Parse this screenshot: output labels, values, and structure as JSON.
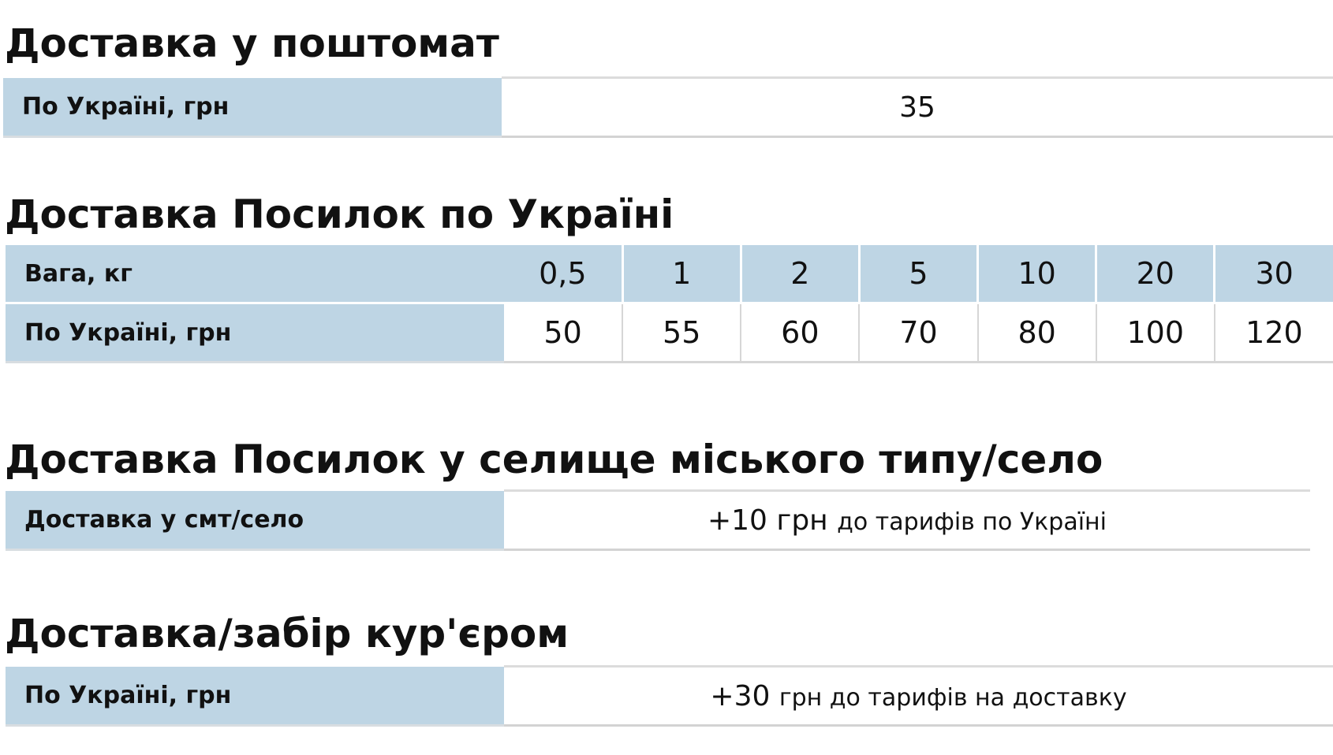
{
  "sections": {
    "parcel_locker": {
      "title": "Доставка у поштомат",
      "row_label": "По Україні, грн",
      "value": "35"
    },
    "parcels_ukraine": {
      "title": "Доставка Посилок по Україні",
      "weight_label": "Вага, кг",
      "price_label": "По Україні, грн",
      "weights": [
        "0,5",
        "1",
        "2",
        "5",
        "10",
        "20",
        "30"
      ],
      "prices": [
        "50",
        "55",
        "60",
        "70",
        "80",
        "100",
        "120"
      ]
    },
    "village": {
      "title": "Доставка Посилок у селище міського типу/село",
      "row_label": "Доставка у смт/село",
      "value_main": "+10 грн",
      "value_note": "до тарифів по Україні"
    },
    "courier": {
      "title": "Доставка/забір кур'єром",
      "row_label": "По Україні, грн",
      "value_main": "+30",
      "value_note": "грн до тарифів на доставку"
    }
  },
  "colors": {
    "label_background": "#bed5e4",
    "text": "#111111",
    "divider": "#d6d6d6"
  }
}
